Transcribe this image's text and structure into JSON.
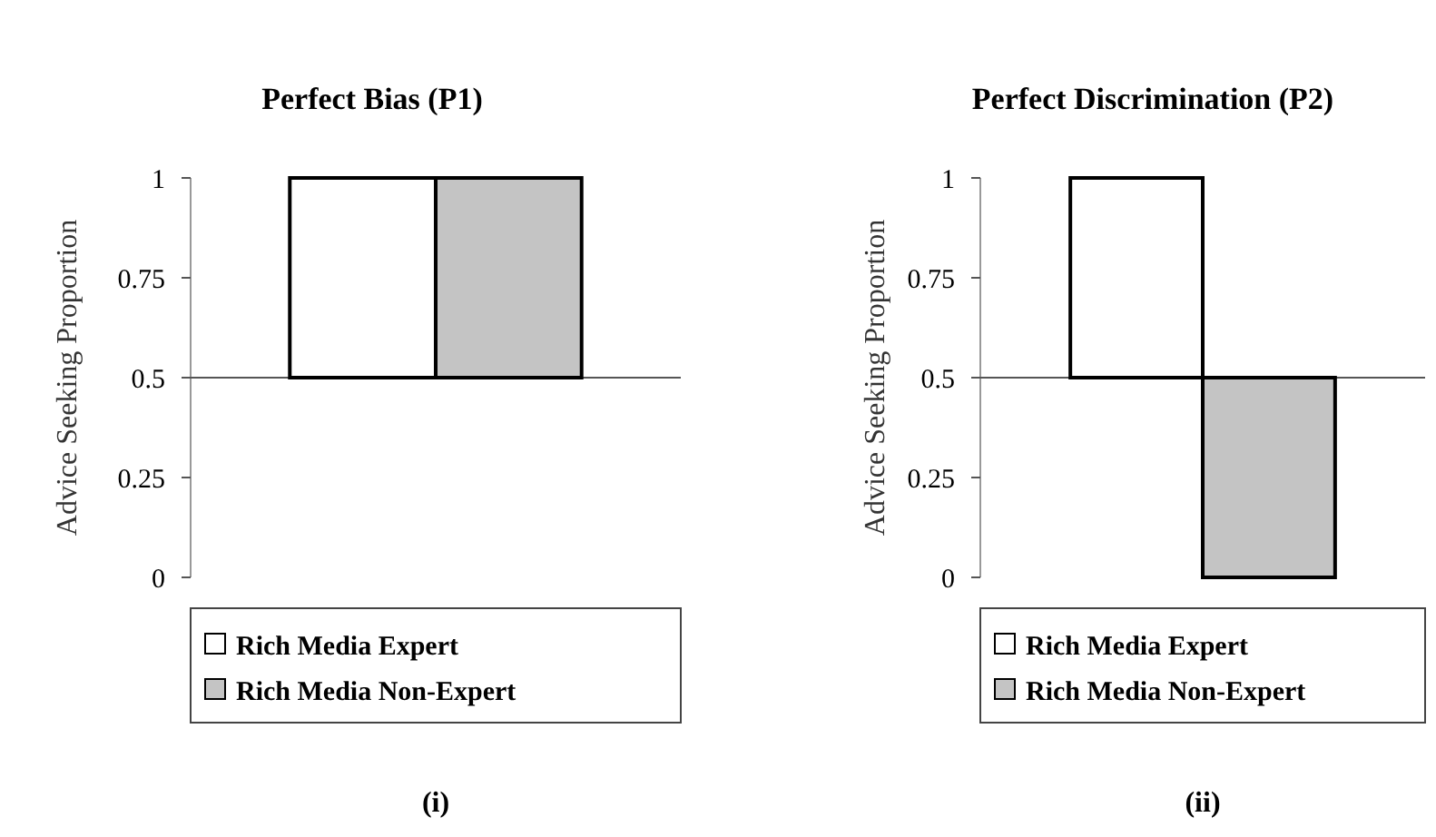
{
  "chart_data": [
    {
      "type": "bar",
      "title": "Perfect Bias (P1)",
      "ylabel": "Advice Seeking Proportion",
      "categories": [
        null,
        null
      ],
      "ylim": [
        0,
        1
      ],
      "yticks": [
        0,
        0.25,
        0.5,
        0.75,
        1
      ],
      "legend": "bottom",
      "annotations": [
        "(i)"
      ],
      "ref_lines": [
        {
          "axis": "y",
          "value": 0.5
        }
      ],
      "series": [
        {
          "name": "Rich Media Expert",
          "color": "#ffffff",
          "values": [
            0.5,
            null
          ],
          "base": [
            0.5,
            null
          ]
        },
        {
          "name": "Rich Media Non-Expert",
          "color": "#c4c4c4",
          "values": [
            null,
            0.5
          ],
          "base": [
            null,
            0.5
          ]
        }
      ]
    },
    {
      "type": "bar",
      "title": "Perfect Discrimination (P2)",
      "ylabel": "Advice Seeking Proportion",
      "categories": [
        null,
        null
      ],
      "ylim": [
        0,
        1
      ],
      "yticks": [
        0,
        0.25,
        0.5,
        0.75,
        1
      ],
      "legend": "bottom",
      "annotations": [
        "(ii)"
      ],
      "ref_lines": [
        {
          "axis": "y",
          "value": 0.5
        }
      ],
      "series": [
        {
          "name": "Rich Media Expert",
          "color": "#ffffff",
          "values": [
            0.5,
            null
          ],
          "base": [
            0.5,
            null
          ]
        },
        {
          "name": "Rich Media Non-Expert",
          "color": "#c4c4c4",
          "values": [
            null,
            -0.5
          ],
          "base": [
            null,
            0.5
          ]
        }
      ]
    }
  ]
}
